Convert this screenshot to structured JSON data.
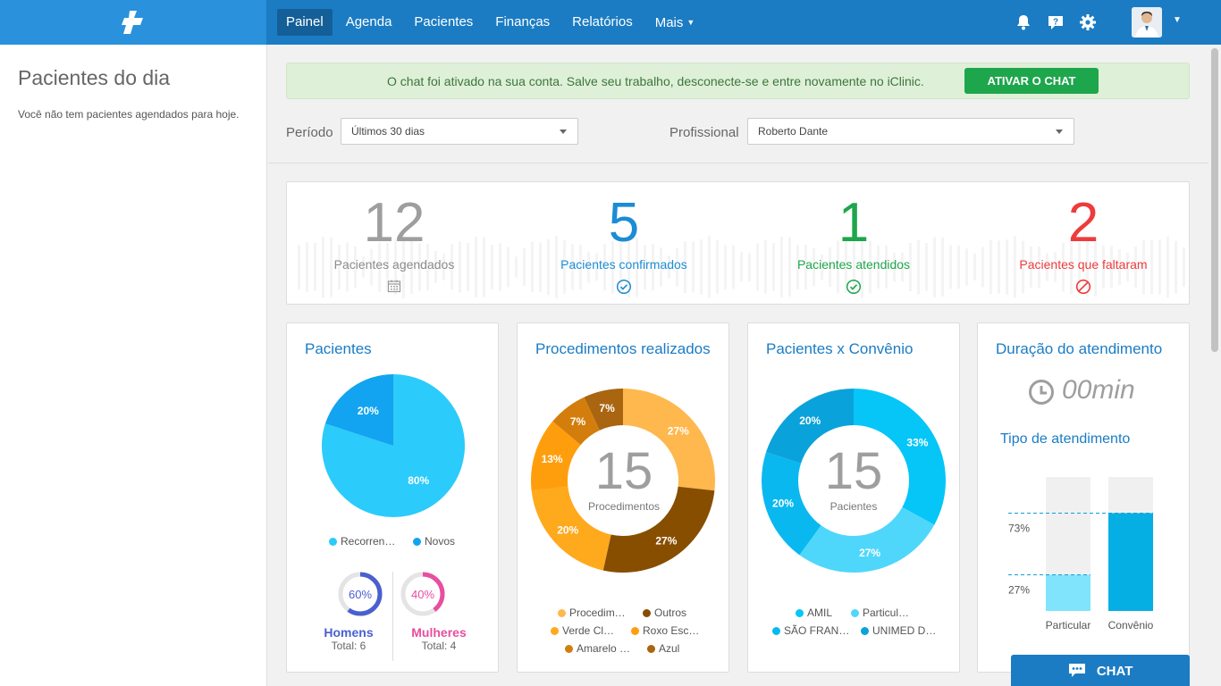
{
  "nav": {
    "items": [
      {
        "label": "Painel"
      },
      {
        "label": "Agenda"
      },
      {
        "label": "Pacientes"
      },
      {
        "label": "Finanças"
      },
      {
        "label": "Relatórios"
      },
      {
        "label": "Mais"
      }
    ]
  },
  "sidebar": {
    "title": "Pacientes do dia",
    "empty_message": "Você não tem pacientes agendados para hoje."
  },
  "alert": {
    "text": "O chat foi ativado na sua conta. Salve seu trabalho, desconecte-se e entre novamente no iClinic.",
    "button": "ATIVAR O CHAT"
  },
  "filters": {
    "period_label": "Período",
    "period_value": "Últimos 30 dias",
    "professional_label": "Profissional",
    "professional_value": "Roberto Dante"
  },
  "stats": [
    {
      "value": "12",
      "label": "Pacientes agendados",
      "color": "#9e9e9e",
      "icon": "calendar-icon"
    },
    {
      "value": "5",
      "label": "Pacientes confirmados",
      "color": "#1b8cd6",
      "icon": "check-circle-icon"
    },
    {
      "value": "1",
      "label": "Pacientes atendidos",
      "color": "#1ea64c",
      "icon": "check-circle-icon"
    },
    {
      "value": "2",
      "label": "Pacientes que faltaram",
      "color": "#ee3b3b",
      "icon": "ban-icon"
    }
  ],
  "cards": {
    "patients": {
      "title": "Pacientes"
    },
    "procedures": {
      "title": "Procedimentos realizados",
      "center_value": "15",
      "center_label": "Procedimentos"
    },
    "insurance": {
      "title": "Pacientes x Convênio",
      "center_value": "15",
      "center_label": "Pacientes"
    },
    "duration": {
      "title": "Duração do atendimento",
      "value": "00min",
      "subtitle": "Tipo de atendimento"
    }
  },
  "gender": {
    "men": {
      "label": "Homens",
      "percent": 60,
      "percent_label": "60%",
      "total": "Total: 6",
      "color": "#4a5fd0"
    },
    "women": {
      "label": "Mulheres",
      "percent": 40,
      "percent_label": "40%",
      "total": "Total: 4",
      "color": "#e94ea0"
    }
  },
  "chat": {
    "label": "CHAT"
  },
  "colors": {
    "nav": "#1b7cc4",
    "accent": "#1b7cc4",
    "success": "#1ea64c",
    "danger": "#ee3b3b"
  },
  "chart_data": [
    {
      "type": "pie",
      "title": "Pacientes",
      "series": [
        {
          "name": "Recorren…",
          "value": 80,
          "label": "80%",
          "color": "#2bcbfb"
        },
        {
          "name": "Novos",
          "value": 20,
          "label": "20%",
          "color": "#12a4f0"
        }
      ]
    },
    {
      "type": "pie",
      "title": "Procedimentos realizados",
      "series": [
        {
          "name": "Procedim…",
          "value": 27,
          "label": "27%",
          "color": "#ffb84d"
        },
        {
          "name": "Outros",
          "value": 27,
          "label": "27%",
          "color": "#874e00"
        },
        {
          "name": "Verde Cl…",
          "value": 20,
          "label": "20%",
          "color": "#ffa91c"
        },
        {
          "name": "Roxo Esc…",
          "value": 13,
          "label": "13%",
          "color": "#ff9e0d"
        },
        {
          "name": "Amarelo …",
          "value": 7,
          "label": "7%",
          "color": "#d37e0c"
        },
        {
          "name": "Azul",
          "value": 7,
          "label": "7%",
          "color": "#a96510"
        }
      ]
    },
    {
      "type": "pie",
      "title": "Pacientes x Convênio",
      "series": [
        {
          "name": "AMIL",
          "value": 33,
          "label": "33%",
          "color": "#05c6f7"
        },
        {
          "name": "Particul…",
          "value": 27,
          "label": "27%",
          "color": "#4fd7fb"
        },
        {
          "name": "SÃO FRAN…",
          "value": 20,
          "label": "20%",
          "color": "#0ab8f0"
        },
        {
          "name": "UNIMED D…",
          "value": 20,
          "label": "20%",
          "color": "#0aa2da"
        }
      ]
    },
    {
      "type": "bar",
      "title": "Tipo de atendimento",
      "categories": [
        "Particular",
        "Convênio"
      ],
      "values": [
        27,
        73
      ],
      "value_labels": [
        "27%",
        "73%"
      ],
      "ylim": [
        0,
        100
      ],
      "colors": [
        "#80e4fd",
        "#05aee3"
      ]
    }
  ]
}
